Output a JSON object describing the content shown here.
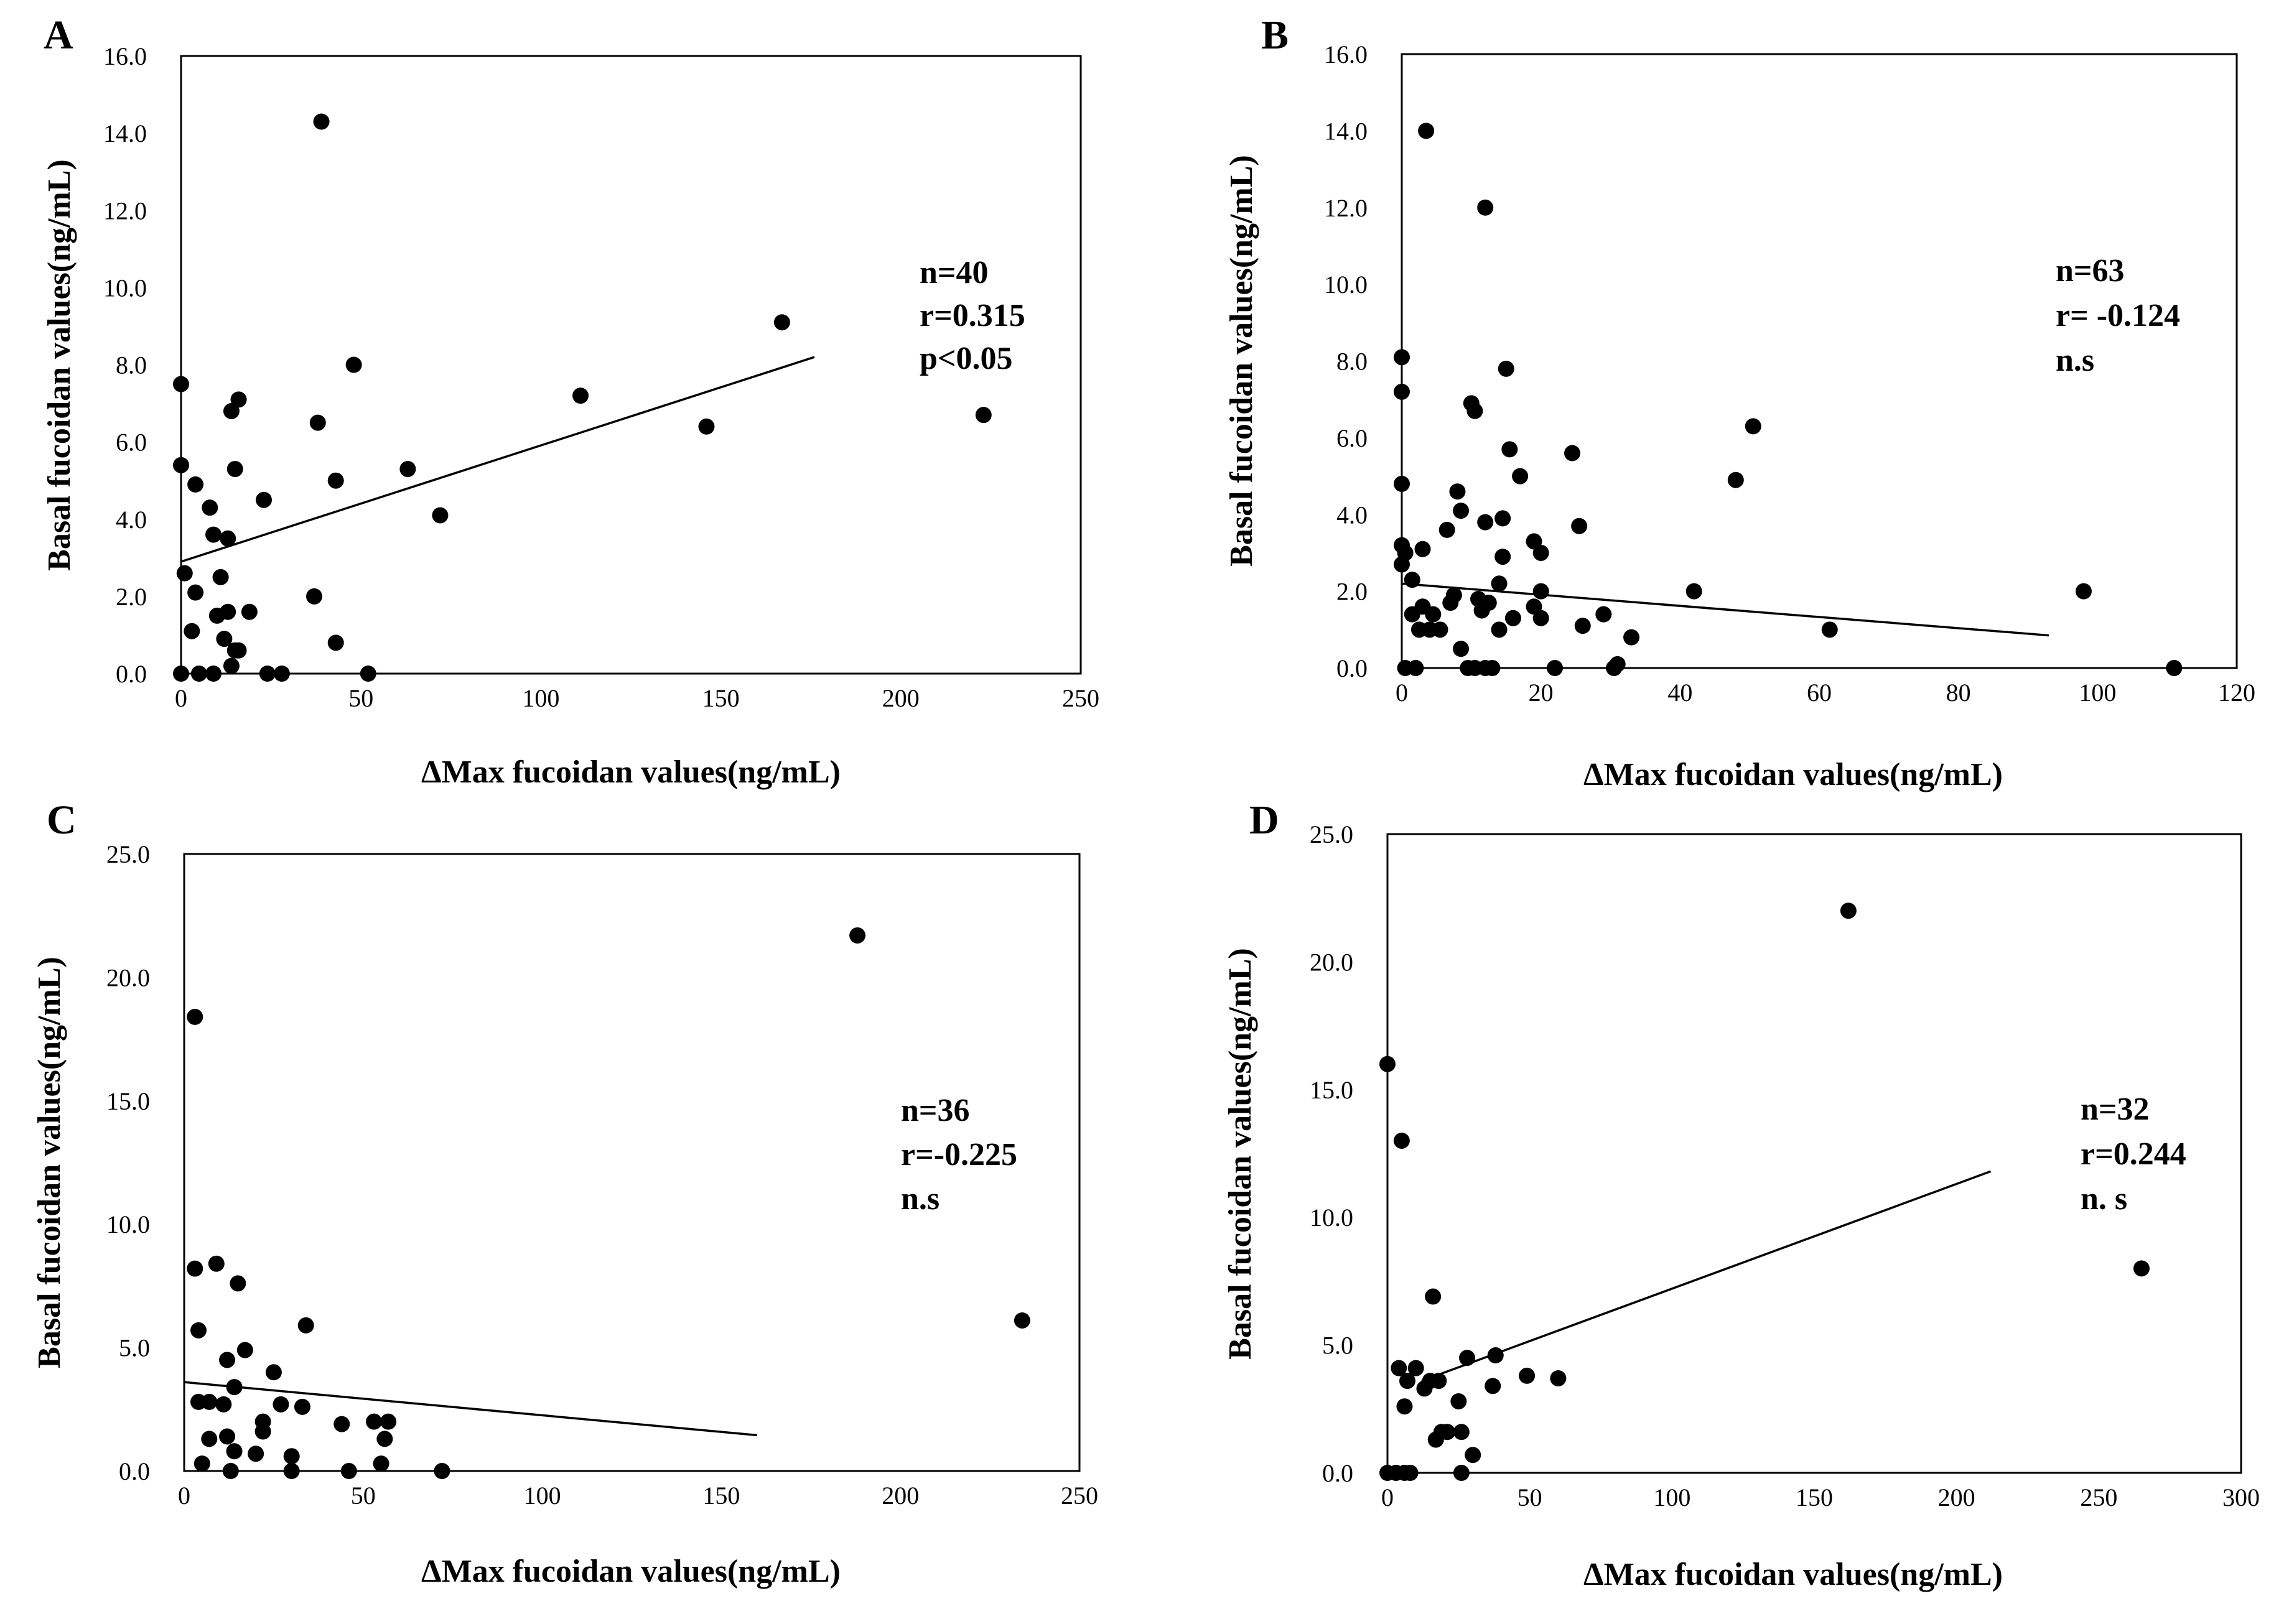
{
  "chart_data": [
    {
      "type": "scatter",
      "panel": "A",
      "xlabel": "ΔMax fucoidan values(ng/mL)",
      "ylabel": "Basal fucoidan values(ng/mL)",
      "xlim": [
        0,
        250
      ],
      "ylim": [
        0,
        16
      ],
      "xticks": [
        "0",
        "50",
        "100",
        "150",
        "200",
        "250"
      ],
      "yticks": [
        "0.0",
        "2.0",
        "4.0",
        "6.0",
        "8.0",
        "10.0",
        "12.0",
        "14.0",
        "16.0"
      ],
      "stats": [
        "n=40",
        "r=0.315",
        "p<0.05"
      ],
      "trendline": {
        "x": [
          0,
          176
        ],
        "y": [
          2.9,
          8.2
        ]
      },
      "points": [
        [
          0,
          7.5
        ],
        [
          0,
          5.4
        ],
        [
          0,
          0
        ],
        [
          1,
          2.6
        ],
        [
          3,
          1.1
        ],
        [
          4,
          4.9
        ],
        [
          4,
          2.1
        ],
        [
          5,
          0
        ],
        [
          8,
          4.3
        ],
        [
          9,
          3.6
        ],
        [
          9,
          0
        ],
        [
          10,
          1.5
        ],
        [
          11,
          2.5
        ],
        [
          12,
          0.9
        ],
        [
          13,
          1.6
        ],
        [
          13,
          3.5
        ],
        [
          14,
          6.8
        ],
        [
          14,
          0.2
        ],
        [
          15,
          5.3
        ],
        [
          15,
          0.6
        ],
        [
          16,
          0.6
        ],
        [
          16,
          7.1
        ],
        [
          19,
          1.6
        ],
        [
          23,
          4.5
        ],
        [
          24,
          0
        ],
        [
          28,
          0
        ],
        [
          37,
          2.0
        ],
        [
          38,
          6.5
        ],
        [
          39,
          14.3
        ],
        [
          43,
          0.8
        ],
        [
          43,
          5.0
        ],
        [
          48,
          8.0
        ],
        [
          52,
          0
        ],
        [
          63,
          5.3
        ],
        [
          72,
          4.1
        ],
        [
          111,
          7.2
        ],
        [
          146,
          6.4
        ],
        [
          167,
          9.1
        ],
        [
          223,
          6.7
        ]
      ]
    },
    {
      "type": "scatter",
      "panel": "B",
      "xlabel": "ΔMax fucoidan values(ng/mL)",
      "ylabel": "Basal fucoidan values(ng/mL)",
      "xlim": [
        0,
        120
      ],
      "ylim": [
        0,
        16
      ],
      "xticks": [
        "0",
        "20",
        "40",
        "60",
        "80",
        "100",
        "120"
      ],
      "yticks": [
        "0.0",
        "2.0",
        "4.0",
        "6.0",
        "8.0",
        "10.0",
        "12.0",
        "14.0",
        "16.0"
      ],
      "stats": [
        "n=63",
        "r= -0.124",
        "n.s"
      ],
      "trendline": {
        "x": [
          0,
          93
        ],
        "y": [
          2.2,
          0.85
        ]
      },
      "points": [
        [
          0,
          8.1
        ],
        [
          0,
          7.2
        ],
        [
          0,
          4.8
        ],
        [
          0,
          3.2
        ],
        [
          0,
          2.7
        ],
        [
          0.5,
          3.0
        ],
        [
          0.5,
          0
        ],
        [
          1.5,
          2.3
        ],
        [
          1.5,
          1.4
        ],
        [
          2,
          0
        ],
        [
          2.5,
          1.0
        ],
        [
          3,
          3.1
        ],
        [
          3,
          1.6
        ],
        [
          3.5,
          14.0
        ],
        [
          4,
          1.0
        ],
        [
          4.5,
          1.4
        ],
        [
          5.5,
          1.0
        ],
        [
          6.5,
          3.6
        ],
        [
          7,
          1.7
        ],
        [
          7.5,
          1.9
        ],
        [
          8,
          4.6
        ],
        [
          8.5,
          4.1
        ],
        [
          8.5,
          0.5
        ],
        [
          9.5,
          0
        ],
        [
          10,
          6.9
        ],
        [
          10.5,
          6.7
        ],
        [
          10.5,
          0
        ],
        [
          11,
          1.8
        ],
        [
          11.5,
          1.5
        ],
        [
          12,
          12.0
        ],
        [
          12,
          3.8
        ],
        [
          12,
          0
        ],
        [
          12.5,
          1.7
        ],
        [
          13,
          0
        ],
        [
          14,
          1.0
        ],
        [
          14,
          2.2
        ],
        [
          14.5,
          2.9
        ],
        [
          14.5,
          3.9
        ],
        [
          15,
          7.8
        ],
        [
          15.5,
          5.7
        ],
        [
          16,
          1.3
        ],
        [
          17,
          5.0
        ],
        [
          19,
          3.3
        ],
        [
          19,
          1.6
        ],
        [
          20,
          3.0
        ],
        [
          20,
          2.0
        ],
        [
          20,
          1.3
        ],
        [
          22,
          0
        ],
        [
          24.5,
          5.6
        ],
        [
          25.5,
          3.7
        ],
        [
          26,
          1.1
        ],
        [
          29,
          1.4
        ],
        [
          30.5,
          0
        ],
        [
          31,
          0.1
        ],
        [
          33,
          0.8
        ],
        [
          42,
          2.0
        ],
        [
          48,
          4.9
        ],
        [
          50.5,
          6.3
        ],
        [
          61.5,
          1.0
        ],
        [
          98,
          2.0
        ],
        [
          111,
          0
        ]
      ]
    },
    {
      "type": "scatter",
      "panel": "C",
      "xlabel": "ΔMax fucoidan values(ng/mL)",
      "ylabel": "Basal fucoidan values(ng/mL)",
      "xlim": [
        0,
        250
      ],
      "ylim": [
        0,
        25
      ],
      "xticks": [
        "0",
        "50",
        "100",
        "150",
        "200",
        "250"
      ],
      "yticks": [
        "0.0",
        "5.0",
        "10.0",
        "15.0",
        "20.0",
        "25.0"
      ],
      "stats": [
        "n=36",
        "r=-0.225",
        "n.s"
      ],
      "trendline": {
        "x": [
          0,
          160
        ],
        "y": [
          3.6,
          1.45
        ]
      },
      "points": [
        [
          3,
          8.2
        ],
        [
          3,
          18.4
        ],
        [
          4,
          5.7
        ],
        [
          4,
          2.8
        ],
        [
          5,
          0.3
        ],
        [
          7,
          2.8
        ],
        [
          7,
          1.3
        ],
        [
          9,
          8.4
        ],
        [
          11,
          2.7
        ],
        [
          12,
          1.4
        ],
        [
          12,
          4.5
        ],
        [
          13,
          0
        ],
        [
          14,
          0.8
        ],
        [
          14,
          3.4
        ],
        [
          15,
          7.6
        ],
        [
          17,
          4.9
        ],
        [
          20,
          0.7
        ],
        [
          22,
          1.6
        ],
        [
          22,
          2.0
        ],
        [
          25,
          4.0
        ],
        [
          27,
          2.7
        ],
        [
          30,
          0.6
        ],
        [
          30,
          0
        ],
        [
          33,
          2.6
        ],
        [
          34,
          5.9
        ],
        [
          44,
          1.9
        ],
        [
          46,
          0
        ],
        [
          53,
          2.0
        ],
        [
          55,
          0.3
        ],
        [
          56,
          1.3
        ],
        [
          57,
          2.0
        ],
        [
          72,
          0
        ],
        [
          188,
          21.7
        ],
        [
          234,
          6.1
        ]
      ]
    },
    {
      "type": "scatter",
      "panel": "D",
      "xlabel": "ΔMax fucoidan values(ng/mL)",
      "ylabel": "Basal fucoidan values(ng/mL)",
      "xlim": [
        0,
        300
      ],
      "ylim": [
        0,
        25
      ],
      "xticks": [
        "0",
        "50",
        "100",
        "150",
        "200",
        "250",
        "300"
      ],
      "yticks": [
        "0.0",
        "5.0",
        "10.0",
        "15.0",
        "20.0",
        "25.0"
      ],
      "stats": [
        "n=32",
        "r=0.244",
        "n. s"
      ],
      "trendline": {
        "x": [
          12,
          212
        ],
        "y": [
          3.6,
          11.8
        ]
      },
      "points": [
        [
          0,
          16.0
        ],
        [
          0,
          0
        ],
        [
          3,
          0
        ],
        [
          4,
          4.1
        ],
        [
          5,
          13.0
        ],
        [
          6,
          2.6
        ],
        [
          6,
          0
        ],
        [
          7,
          3.6
        ],
        [
          8,
          0
        ],
        [
          10,
          4.1
        ],
        [
          13,
          3.3
        ],
        [
          15,
          3.6
        ],
        [
          16,
          6.9
        ],
        [
          17,
          1.3
        ],
        [
          18,
          3.6
        ],
        [
          19,
          1.6
        ],
        [
          21,
          1.6
        ],
        [
          25,
          2.8
        ],
        [
          26,
          1.6
        ],
        [
          26,
          0
        ],
        [
          28,
          4.5
        ],
        [
          30,
          0.7
        ],
        [
          37,
          3.4
        ],
        [
          38,
          4.6
        ],
        [
          49,
          3.8
        ],
        [
          60,
          3.7
        ],
        [
          162,
          22.0
        ],
        [
          265,
          8.0
        ]
      ]
    }
  ],
  "panels": [
    {
      "letter": "A",
      "xlabel": "ΔMax fucoidan values(ng/mL)",
      "ylabel": "Basal fucoidan values(ng/mL)"
    },
    {
      "letter": "B",
      "xlabel": "ΔMax fucoidan values(ng/mL)",
      "ylabel": "Basal fucoidan values(ng/mL)"
    },
    {
      "letter": "C",
      "xlabel": "ΔMax fucoidan values(ng/mL)",
      "ylabel": "Basal fucoidan values(ng/mL)"
    },
    {
      "letter": "D",
      "xlabel": "ΔMax fucoidan values(ng/mL)",
      "ylabel": "Basal fucoidan values(ng/mL)"
    }
  ]
}
